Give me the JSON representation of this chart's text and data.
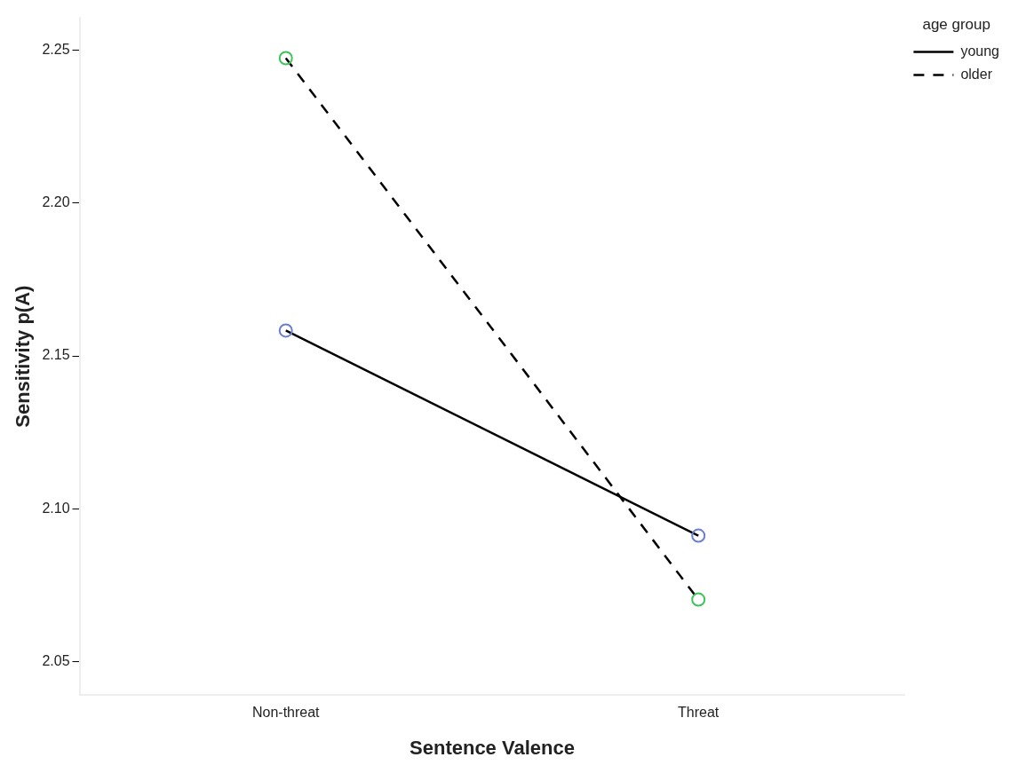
{
  "chart_data": {
    "type": "line",
    "xlabel": "Sentence Valence",
    "ylabel": "Sensitivity p(A)",
    "legend_title": "age group",
    "legend": "top right",
    "marker": "circle",
    "grid": false,
    "categories": [
      "Non-threat",
      "Threat"
    ],
    "ylim": [
      2.039,
      2.2606
    ],
    "yticks": [
      {
        "value": 2.05,
        "label": "2.05"
      },
      {
        "value": 2.1,
        "label": "2.10"
      },
      {
        "value": 2.15,
        "label": "2.15"
      },
      {
        "value": 2.2,
        "label": "2.20"
      },
      {
        "value": 2.25,
        "label": "2.25"
      }
    ],
    "series": [
      {
        "name": "young",
        "color": "#000000",
        "colors": [
          "#6a7fd0",
          "#6a7fd0"
        ],
        "line_style": "solid",
        "values": [
          2.1583,
          2.0912
        ]
      },
      {
        "name": "older",
        "color": "#000000",
        "colors": [
          "#3fc45a",
          "#3fc45a"
        ],
        "line_style": "dashed",
        "values": [
          2.2474,
          2.0703
        ]
      }
    ]
  }
}
